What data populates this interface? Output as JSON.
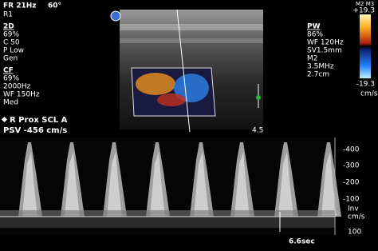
{
  "header": {
    "frame_rate": "FR 21Hz",
    "angle": "60°",
    "region": "R1"
  },
  "left_panel": {
    "b_mode": {
      "title": "2D",
      "gain": "69%",
      "contrast": "C 50",
      "power": "P Low",
      "mode": "Gen"
    },
    "color_flow": {
      "title": "CF",
      "gain": "69%",
      "prf": "2000Hz",
      "wall_filter": "WF 150Hz",
      "setting": "Med"
    },
    "vessel": "R Prox SCL A",
    "psv": "PSV -456 cm/s"
  },
  "right_panel": {
    "title": "PW",
    "gain": "86%",
    "wall_filter": "WF 120Hz",
    "sample_volume": "SV1.5mm",
    "map": "M2",
    "frequency": "3.5MHz",
    "depth": "2.7cm"
  },
  "color_bar": {
    "maps": "M2 M3",
    "top": "+19.3",
    "bottom": "-19.3",
    "unit": "cm/s"
  },
  "depth_marker": "4.5",
  "spectral_scale": {
    "labels": [
      "-400",
      "-300",
      "-200",
      "-100"
    ],
    "inv": "Inv",
    "unit": "cm/s",
    "positive": "100"
  },
  "sweep_time": "6.6sec"
}
